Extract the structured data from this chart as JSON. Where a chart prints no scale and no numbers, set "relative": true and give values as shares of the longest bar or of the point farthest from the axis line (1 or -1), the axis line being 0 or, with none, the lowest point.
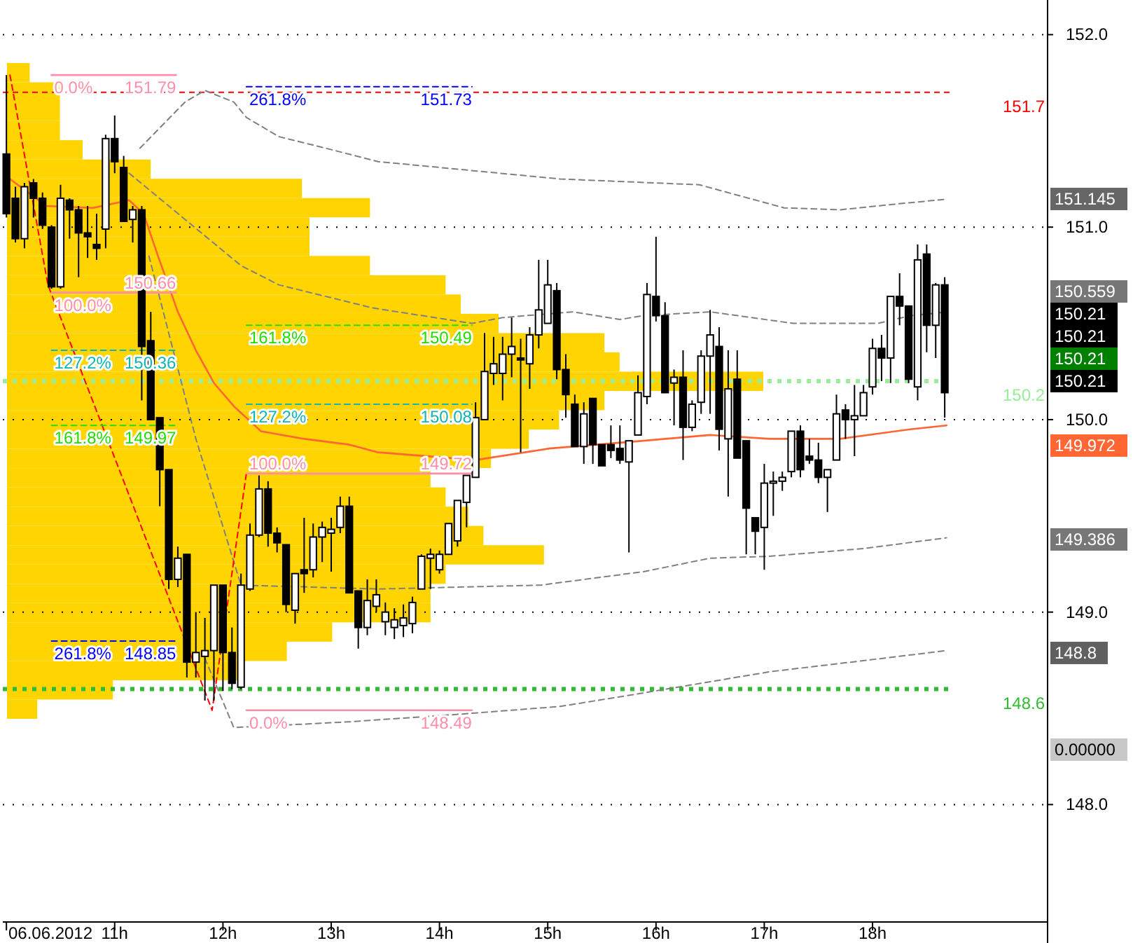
{
  "chart_data": [
    {
      "type": "candlestick",
      "x": [
        "2012-06-06T10:00",
        "2012-06-06T10:05",
        "2012-06-06T10:10",
        "2012-06-06T10:15",
        "2012-06-06T10:20",
        "2012-06-06T10:25",
        "2012-06-06T10:30",
        "2012-06-06T10:35",
        "2012-06-06T10:40",
        "2012-06-06T10:45",
        "2012-06-06T10:50",
        "2012-06-06T10:55",
        "2012-06-06T11:00",
        "2012-06-06T11:05",
        "2012-06-06T11:10",
        "2012-06-06T11:15",
        "2012-06-06T11:20",
        "2012-06-06T11:25",
        "2012-06-06T11:30",
        "2012-06-06T11:35",
        "2012-06-06T11:40",
        "2012-06-06T11:45",
        "2012-06-06T11:50",
        "2012-06-06T11:55",
        "2012-06-06T12:00",
        "2012-06-06T12:05",
        "2012-06-06T12:10",
        "2012-06-06T12:15",
        "2012-06-06T12:20",
        "2012-06-06T12:25",
        "2012-06-06T12:30",
        "2012-06-06T12:35",
        "2012-06-06T12:40",
        "2012-06-06T12:45",
        "2012-06-06T12:50",
        "2012-06-06T12:55",
        "2012-06-06T13:00",
        "2012-06-06T13:05",
        "2012-06-06T13:10",
        "2012-06-06T13:15",
        "2012-06-06T13:20",
        "2012-06-06T13:25",
        "2012-06-06T13:30",
        "2012-06-06T13:35",
        "2012-06-06T13:40",
        "2012-06-06T13:45",
        "2012-06-06T13:50",
        "2012-06-06T13:55",
        "2012-06-06T14:00",
        "2012-06-06T14:05",
        "2012-06-06T14:10",
        "2012-06-06T14:15",
        "2012-06-06T14:20",
        "2012-06-06T14:25",
        "2012-06-06T14:30",
        "2012-06-06T14:35",
        "2012-06-06T14:40",
        "2012-06-06T14:45",
        "2012-06-06T14:50",
        "2012-06-06T14:55",
        "2012-06-06T15:00",
        "2012-06-06T15:05",
        "2012-06-06T15:10",
        "2012-06-06T15:15",
        "2012-06-06T15:20",
        "2012-06-06T15:25",
        "2012-06-06T15:30",
        "2012-06-06T15:35",
        "2012-06-06T15:40",
        "2012-06-06T15:45",
        "2012-06-06T15:50",
        "2012-06-06T15:55",
        "2012-06-06T16:00",
        "2012-06-06T16:05",
        "2012-06-06T16:10",
        "2012-06-06T16:15",
        "2012-06-06T16:20",
        "2012-06-06T16:25",
        "2012-06-06T16:30",
        "2012-06-06T16:35",
        "2012-06-06T16:40",
        "2012-06-06T16:45",
        "2012-06-06T16:50",
        "2012-06-06T16:55",
        "2012-06-06T17:00",
        "2012-06-06T17:05",
        "2012-06-06T17:10",
        "2012-06-06T17:15",
        "2012-06-06T17:20",
        "2012-06-06T17:25",
        "2012-06-06T17:30",
        "2012-06-06T17:35",
        "2012-06-06T17:40",
        "2012-06-06T17:45",
        "2012-06-06T17:50",
        "2012-06-06T17:55",
        "2012-06-06T18:00",
        "2012-06-06T18:05",
        "2012-06-06T18:10",
        "2012-06-06T18:15",
        "2012-06-06T18:20",
        "2012-06-06T18:25",
        "2012-06-06T18:30",
        "2012-06-06T18:35",
        "2012-06-06T18:40"
      ],
      "ohlc": [
        [
          151.38,
          151.79,
          151.05,
          151.07
        ],
        [
          151.15,
          151.21,
          150.92,
          150.94
        ],
        [
          150.94,
          151.23,
          150.89,
          151.21
        ],
        [
          151.23,
          151.25,
          151.05,
          151.15
        ],
        [
          151.15,
          151.18,
          150.99,
          151.01
        ],
        [
          151.0,
          151.01,
          150.68,
          150.69
        ],
        [
          150.69,
          151.22,
          150.68,
          151.15
        ],
        [
          151.14,
          151.15,
          150.94,
          151.09
        ],
        [
          151.09,
          151.11,
          150.74,
          150.97
        ],
        [
          150.97,
          151.11,
          150.84,
          150.95
        ],
        [
          150.91,
          151.07,
          150.83,
          150.89
        ],
        [
          150.99,
          151.48,
          150.89,
          151.46
        ],
        [
          151.46,
          151.58,
          151.28,
          151.34
        ],
        [
          151.31,
          151.37,
          151.03,
          151.03
        ],
        [
          151.04,
          151.11,
          150.92,
          151.09
        ],
        [
          151.09,
          151.11,
          150.1,
          150.38
        ],
        [
          150.41,
          150.56,
          150.0,
          150.0
        ],
        [
          150.01,
          150.01,
          149.55,
          149.74
        ],
        [
          149.74,
          149.74,
          149.12,
          149.17
        ],
        [
          149.17,
          149.34,
          149.13,
          149.28
        ],
        [
          149.3,
          149.3,
          148.66,
          148.74
        ],
        [
          148.74,
          149.0,
          148.66,
          148.79
        ],
        [
          148.77,
          148.97,
          148.54,
          148.8
        ],
        [
          148.8,
          149.14,
          148.54,
          149.14
        ],
        [
          149.14,
          149.14,
          148.59,
          148.79
        ],
        [
          148.79,
          148.92,
          148.6,
          148.63
        ],
        [
          148.61,
          149.2,
          148.6,
          149.14
        ],
        [
          149.12,
          149.46,
          149.11,
          149.4
        ],
        [
          149.4,
          149.71,
          149.39,
          149.64
        ],
        [
          149.64,
          149.68,
          149.34,
          149.41
        ],
        [
          149.41,
          149.44,
          149.31,
          149.36
        ],
        [
          149.35,
          149.35,
          149.0,
          149.04
        ],
        [
          149.01,
          149.2,
          148.94,
          149.2
        ],
        [
          149.22,
          149.49,
          149.1,
          149.2
        ],
        [
          149.22,
          149.46,
          149.18,
          149.39
        ],
        [
          149.39,
          149.47,
          149.26,
          149.44
        ],
        [
          149.41,
          149.49,
          149.21,
          149.43
        ],
        [
          149.44,
          149.6,
          149.41,
          149.55
        ],
        [
          149.55,
          149.6,
          149.1,
          149.1
        ],
        [
          149.11,
          149.11,
          148.81,
          148.92
        ],
        [
          148.92,
          149.17,
          148.88,
          149.06
        ],
        [
          149.03,
          149.17,
          149.0,
          149.09
        ],
        [
          148.95,
          149.05,
          148.88,
          149.0
        ],
        [
          148.92,
          149.02,
          148.86,
          148.96
        ],
        [
          148.93,
          149.04,
          148.87,
          148.97
        ],
        [
          148.94,
          149.08,
          148.89,
          149.05
        ],
        [
          149.12,
          149.3,
          149.12,
          149.29
        ],
        [
          149.28,
          149.33,
          149.12,
          149.3
        ],
        [
          149.22,
          149.32,
          149.2,
          149.3
        ],
        [
          149.3,
          149.46,
          149.3,
          149.46
        ],
        [
          149.37,
          149.58,
          149.34,
          149.58
        ],
        [
          149.57,
          149.71,
          149.44,
          149.71
        ],
        [
          149.7,
          150.09,
          149.7,
          150.01
        ],
        [
          150.0,
          150.45,
          150.0,
          150.25
        ],
        [
          150.24,
          150.43,
          150.18,
          150.29
        ],
        [
          150.24,
          150.43,
          150.1,
          150.34
        ],
        [
          150.34,
          150.53,
          150.22,
          150.38
        ],
        [
          150.32,
          150.42,
          149.83,
          150.31
        ],
        [
          150.29,
          150.48,
          150.16,
          150.44
        ],
        [
          150.44,
          150.83,
          150.37,
          150.57
        ],
        [
          150.5,
          150.83,
          150.5,
          150.7
        ],
        [
          150.67,
          150.71,
          150.21,
          150.26
        ],
        [
          150.26,
          150.34,
          150.01,
          150.13
        ],
        [
          150.08,
          150.13,
          149.86,
          149.86
        ],
        [
          149.86,
          150.09,
          149.77,
          150.03
        ],
        [
          150.11,
          150.11,
          149.77,
          149.87
        ],
        [
          149.87,
          149.87,
          149.76,
          149.76
        ],
        [
          149.87,
          149.97,
          149.8,
          149.84
        ],
        [
          149.85,
          149.97,
          149.77,
          149.79
        ],
        [
          149.78,
          149.89,
          149.31,
          149.89
        ],
        [
          149.92,
          150.23,
          149.92,
          150.14
        ],
        [
          150.12,
          150.71,
          150.08,
          150.65
        ],
        [
          150.64,
          150.95,
          150.51,
          150.54
        ],
        [
          150.54,
          150.61,
          150.14,
          150.14
        ],
        [
          150.19,
          150.26,
          149.97,
          150.22
        ],
        [
          150.22,
          150.36,
          149.79,
          149.96
        ],
        [
          149.96,
          150.1,
          149.94,
          150.08
        ],
        [
          150.09,
          150.36,
          150.03,
          150.33
        ],
        [
          150.33,
          150.57,
          150.03,
          150.44
        ],
        [
          150.38,
          150.48,
          149.84,
          149.95
        ],
        [
          149.9,
          150.36,
          149.6,
          150.16
        ],
        [
          150.21,
          150.36,
          149.8,
          149.8
        ],
        [
          149.89,
          149.89,
          149.3,
          149.54
        ],
        [
          149.49,
          149.49,
          149.3,
          149.42
        ],
        [
          149.44,
          149.77,
          149.22,
          149.67
        ],
        [
          149.67,
          149.73,
          149.5,
          149.68
        ],
        [
          149.68,
          149.73,
          149.63,
          149.7
        ],
        [
          149.73,
          149.94,
          149.7,
          149.94
        ],
        [
          149.94,
          149.97,
          149.7,
          149.74
        ],
        [
          149.81,
          149.9,
          149.77,
          149.79
        ],
        [
          149.79,
          149.88,
          149.67,
          149.7
        ],
        [
          149.7,
          149.74,
          149.52,
          149.74
        ],
        [
          149.79,
          150.13,
          149.79,
          150.03
        ],
        [
          150.05,
          150.08,
          149.9,
          150.0
        ],
        [
          150.0,
          150.18,
          149.81,
          150.02
        ],
        [
          150.02,
          150.18,
          150.02,
          150.14
        ],
        [
          150.17,
          150.42,
          150.13,
          150.37
        ],
        [
          150.37,
          150.44,
          150.2,
          150.32
        ],
        [
          150.32,
          150.64,
          150.19,
          150.64
        ],
        [
          150.64,
          150.76,
          150.49,
          150.59
        ],
        [
          150.59,
          150.59,
          150.19,
          150.21
        ],
        [
          150.17,
          150.91,
          150.1,
          150.83
        ],
        [
          150.86,
          150.91,
          150.35,
          150.49
        ],
        [
          150.49,
          150.71,
          150.32,
          150.7
        ],
        [
          150.7,
          150.74,
          150.01,
          150.14
        ]
      ],
      "series": [
        {
          "type": "line",
          "color": "#ff6633",
          "line_style": "solid",
          "x": [
            "2012-06-06T10:02",
            "2012-06-06T10:22",
            "2012-06-06T10:48",
            "2012-06-06T11:08",
            "2012-06-06T11:16",
            "2012-06-06T11:24",
            "2012-06-06T11:35",
            "2012-06-06T11:45",
            "2012-06-06T11:55",
            "2012-06-06T12:06",
            "2012-06-06T12:21",
            "2012-06-06T12:45",
            "2012-06-06T13:10",
            "2012-06-06T13:26",
            "2012-06-06T14:20",
            "2012-06-06T15:01",
            "2012-06-06T15:53",
            "2012-06-06T16:30",
            "2012-06-06T17:03",
            "2012-06-06T17:42",
            "2012-06-06T18:21",
            "2012-06-06T18:41"
          ],
          "values": [
            151.25,
            151.11,
            151.1,
            151.14,
            151.07,
            150.85,
            150.56,
            150.36,
            150.19,
            150.07,
            149.94,
            149.9,
            149.87,
            149.83,
            149.79,
            149.85,
            149.89,
            149.92,
            149.9,
            149.9,
            149.95,
            149.97
          ]
        },
        {
          "type": "line",
          "color": "#808080",
          "line_style": "dashed",
          "x": [
            "2012-06-06T11:14",
            "2012-06-06T11:39",
            "2012-06-06T11:50",
            "2012-06-06T12:06",
            "2012-06-06T12:13",
            "2012-06-06T12:31",
            "2012-06-06T12:57",
            "2012-06-06T13:26",
            "2012-06-06T13:49",
            "2012-06-06T15:07",
            "2012-06-06T16:24",
            "2012-06-06T17:11",
            "2012-06-06T17:42",
            "2012-06-06T18:13",
            "2012-06-06T18:41"
          ],
          "values": [
            151.41,
            151.65,
            151.71,
            151.65,
            151.57,
            151.47,
            151.41,
            151.34,
            151.32,
            151.25,
            151.22,
            151.1,
            151.09,
            151.12,
            151.145
          ]
        },
        {
          "type": "line",
          "color": "#808080",
          "line_style": "dashed",
          "x": [
            "2012-06-06T11:08",
            "2012-06-06T11:39",
            "2012-06-06T12:10",
            "2012-06-06T12:31",
            "2012-06-06T13:23",
            "2012-06-06T14:18",
            "2012-06-06T14:35",
            "2012-06-06T15:14",
            "2012-06-06T15:40",
            "2012-06-06T15:53",
            "2012-06-06T16:30",
            "2012-06-06T17:16",
            "2012-06-06T18:03",
            "2012-06-06T18:21",
            "2012-06-06T18:41"
          ],
          "values": [
            151.28,
            151.04,
            150.8,
            150.7,
            150.58,
            150.5,
            150.53,
            150.56,
            150.52,
            150.54,
            150.56,
            150.5,
            150.5,
            150.54,
            150.559
          ]
        },
        {
          "type": "line",
          "color": "#808080",
          "line_style": "dashed",
          "x": [
            "2012-06-06T11:19",
            "2012-06-06T11:45",
            "2012-06-06T12:10",
            "2012-06-06T13:26",
            "2012-06-06T14:56",
            "2012-06-06T15:53",
            "2012-06-06T16:30",
            "2012-06-06T17:03",
            "2012-06-06T17:55",
            "2012-06-06T18:41"
          ],
          "values": [
            150.85,
            149.9,
            149.14,
            149.12,
            149.14,
            149.21,
            149.28,
            149.29,
            149.33,
            149.386
          ]
        },
        {
          "type": "line",
          "color": "#808080",
          "line_style": "dashed",
          "x": [
            "2012-06-06T11:50",
            "2012-06-06T12:06",
            "2012-06-06T13:10",
            "2012-06-06T14:12",
            "2012-06-06T15:07",
            "2012-06-06T15:53",
            "2012-06-06T17:03",
            "2012-06-06T17:57",
            "2012-06-06T18:41"
          ],
          "values": [
            148.76,
            148.4,
            148.43,
            148.47,
            148.51,
            148.58,
            148.69,
            148.75,
            148.8
          ]
        },
        {
          "type": "line",
          "color": "#ff0000",
          "line_style": "dashed",
          "x": [
            "2012-06-06T10:02",
            "2012-06-06T10:23",
            "2012-06-06T11:54",
            "2012-06-06T12:13"
          ],
          "values": [
            151.79,
            150.7,
            148.49,
            149.72
          ]
        },
        {
          "name": "0.0%",
          "type": "line",
          "color": "#ff8fa8",
          "line_style": "solid",
          "x": [
            "2012-06-06T10:25",
            "2012-06-06T11:34"
          ],
          "values": [
            151.79,
            151.79
          ],
          "value_labels": [
            null,
            "151.79"
          ]
        },
        {
          "name": "100.0%",
          "type": "line",
          "color": "#ff8fa8",
          "line_style": "solid",
          "x": [
            "2012-06-06T10:25",
            "2012-06-06T11:34"
          ],
          "values": [
            150.66,
            150.66
          ],
          "value_labels": [
            null,
            "150.66"
          ]
        },
        {
          "name": "127.2%",
          "type": "line",
          "color": "#12b4b4",
          "line_style": "dashed",
          "x": [
            "2012-06-06T10:25",
            "2012-06-06T11:34"
          ],
          "values": [
            150.36,
            150.36
          ],
          "value_labels": [
            null,
            "150.36"
          ]
        },
        {
          "name": "161.8%",
          "type": "line",
          "color": "#22dd00",
          "line_style": "dashed",
          "x": [
            "2012-06-06T10:25",
            "2012-06-06T11:34"
          ],
          "values": [
            149.97,
            149.97
          ],
          "value_labels": [
            null,
            "149.97"
          ]
        },
        {
          "name": "261.8%",
          "type": "line",
          "color": "#0000ff",
          "line_style": "dashed",
          "x": [
            "2012-06-06T10:25",
            "2012-06-06T11:34"
          ],
          "values": [
            148.85,
            148.85
          ],
          "value_labels": [
            null,
            "148.85"
          ]
        },
        {
          "name": "261.8%",
          "type": "line",
          "color": "#0000ff",
          "line_style": "dashed",
          "x": [
            "2012-06-06T12:13",
            "2012-06-06T14:18"
          ],
          "values": [
            151.73,
            151.73
          ],
          "value_labels": [
            null,
            "151.73"
          ]
        },
        {
          "name": "161.8%",
          "type": "line",
          "color": "#22dd00",
          "line_style": "dashed",
          "x": [
            "2012-06-06T12:13",
            "2012-06-06T14:18"
          ],
          "values": [
            150.49,
            150.49
          ],
          "value_labels": [
            null,
            "150.49"
          ]
        },
        {
          "name": "127.2%",
          "type": "line",
          "color": "#12b4b4",
          "line_style": "dashed",
          "x": [
            "2012-06-06T12:13",
            "2012-06-06T14:18"
          ],
          "values": [
            150.08,
            150.08
          ],
          "value_labels": [
            null,
            "150.08"
          ]
        },
        {
          "name": "100.0%",
          "type": "line",
          "color": "#ff8fa8",
          "line_style": "solid",
          "x": [
            "2012-06-06T12:13",
            "2012-06-06T14:18"
          ],
          "values": [
            149.72,
            149.72
          ],
          "value_labels": [
            null,
            "149.72"
          ]
        },
        {
          "name": "0.0%",
          "type": "line",
          "color": "#ff8fa8",
          "line_style": "solid",
          "x": [
            "2012-06-06T12:13",
            "2012-06-06T14:18"
          ],
          "values": [
            148.49,
            148.49
          ],
          "value_labels": [
            null,
            "148.49"
          ]
        }
      ],
      "ref_lines": [
        {
          "axis": "y",
          "value": 151.7,
          "label": "151.7",
          "color": "#ff0000",
          "line_style": "dashed"
        },
        {
          "axis": "y",
          "value": 150.2,
          "label": "150.2",
          "color": "#99ee99",
          "line_style": "dotted"
        },
        {
          "axis": "y",
          "value": 148.6,
          "label": "148.6",
          "color": "#33bb33",
          "line_style": "dotted"
        }
      ],
      "annotations": [
        "151.145",
        "150.559",
        "150.21",
        "150.21",
        "150.21",
        "150.21",
        "149.972",
        "149.386",
        "148.8",
        "0.00000"
      ],
      "xlim": [
        "2012-06-06T09:58",
        "2012-06-06T19:37"
      ],
      "xticks": [
        {
          "value": "2012-06-06T10:00",
          "label": "06.06.2012"
        },
        {
          "value": "2012-06-06T11:00",
          "label": "11h"
        },
        {
          "value": "2012-06-06T12:00",
          "label": "12h"
        },
        {
          "value": "2012-06-06T13:00",
          "label": "13h"
        },
        {
          "value": "2012-06-06T14:00",
          "label": "14h"
        },
        {
          "value": "2012-06-06T15:00",
          "label": "15h"
        },
        {
          "value": "2012-06-06T16:00",
          "label": "16h"
        },
        {
          "value": "2012-06-06T17:00",
          "label": "17h"
        },
        {
          "value": "2012-06-06T18:00",
          "label": "18h"
        }
      ],
      "ylim": [
        147.39,
        152.18
      ],
      "yticks": [
        {
          "value": 148,
          "label": "148.0"
        },
        {
          "value": 149,
          "label": "149.0"
        },
        {
          "value": 150,
          "label": "150.0"
        },
        {
          "value": 151,
          "label": "151.0"
        },
        {
          "value": 152,
          "label": "152.0"
        }
      ],
      "grid": "y"
    },
    {
      "type": "bar",
      "orientation": "horizontal",
      "relative": true,
      "color": "#ffd400",
      "categories": [
        null,
        null,
        null,
        null,
        null,
        null,
        null,
        null,
        null,
        null,
        null,
        null,
        null,
        null,
        null,
        null,
        null,
        null,
        null,
        null,
        null,
        null,
        null,
        null,
        null,
        null,
        null,
        null,
        null,
        null,
        null,
        null,
        null,
        null
      ],
      "values": [
        0.03,
        0.07,
        0.07,
        0.07,
        0.1,
        0.19,
        0.39,
        0.48,
        0.4,
        0.4,
        0.48,
        0.58,
        0.6,
        0.65,
        0.79,
        0.81,
        1,
        0.79,
        0.73,
        0.69,
        0.64,
        0.56,
        0.58,
        0.61,
        0.63,
        0.71,
        0.58,
        0.56,
        0.56,
        0.43,
        0.37,
        0.31,
        0.14,
        0.04
      ]
    }
  ]
}
